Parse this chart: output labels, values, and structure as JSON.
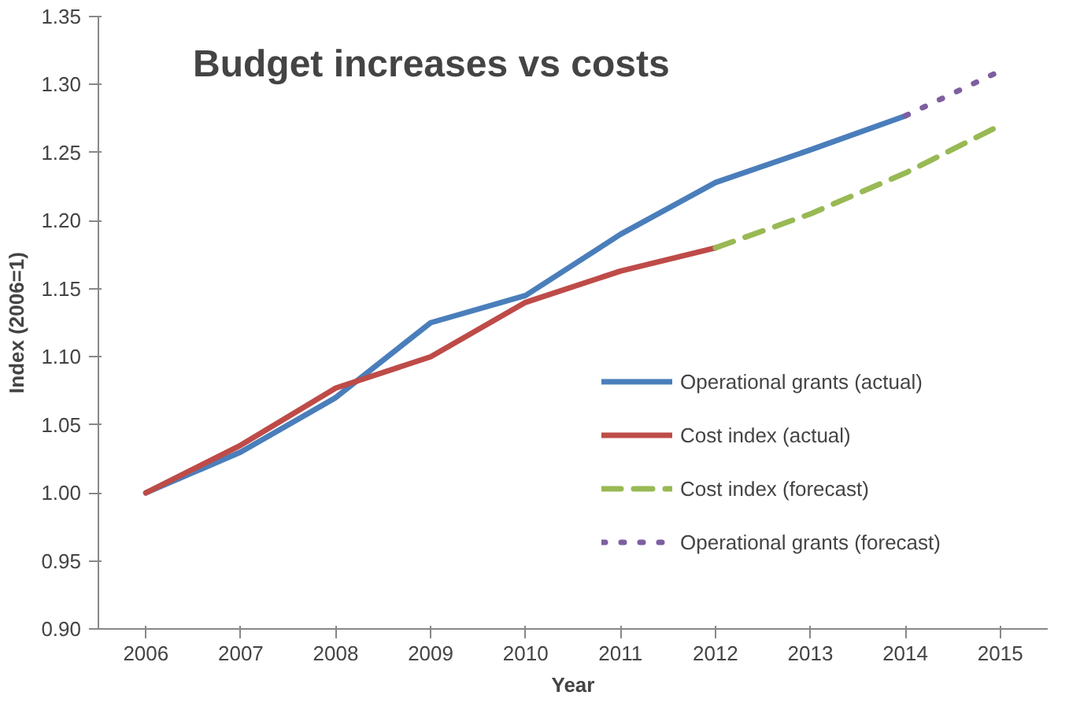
{
  "chart_data": {
    "type": "line",
    "title": "Budget increases vs costs",
    "xlabel": "Year",
    "ylabel": "Index (2006=1)",
    "categories": [
      "2006",
      "2007",
      "2008",
      "2009",
      "2010",
      "2011",
      "2012",
      "2013",
      "2014",
      "2015"
    ],
    "ylim": [
      0.9,
      1.35
    ],
    "yticks": [
      {
        "value": 0.9,
        "label": "0.90"
      },
      {
        "value": 0.95,
        "label": "0.95"
      },
      {
        "value": 1.0,
        "label": "1.00"
      },
      {
        "value": 1.05,
        "label": "1.05"
      },
      {
        "value": 1.1,
        "label": "1.10"
      },
      {
        "value": 1.15,
        "label": "1.15"
      },
      {
        "value": 1.2,
        "label": "1.20"
      },
      {
        "value": 1.25,
        "label": "1.25"
      },
      {
        "value": 1.3,
        "label": "1.30"
      },
      {
        "value": 1.35,
        "label": "1.35"
      }
    ],
    "grid": false,
    "legend": "right",
    "marker": "none",
    "series": [
      {
        "name": "Operational grants (actual)",
        "color": "#4a7ebb",
        "line_style": "solid",
        "values": [
          1.0,
          1.03,
          1.07,
          1.125,
          1.145,
          1.19,
          1.228,
          1.252,
          1.277,
          null
        ]
      },
      {
        "name": "Cost index (actual)",
        "color": "#be4b48",
        "line_style": "solid",
        "values": [
          1.0,
          1.035,
          1.077,
          1.1,
          1.14,
          1.163,
          1.18,
          null,
          null,
          null
        ]
      },
      {
        "name": "Cost index (forecast)",
        "color": "#98b954",
        "line_style": "dashed",
        "values": [
          null,
          null,
          null,
          null,
          null,
          null,
          1.18,
          1.205,
          1.235,
          1.27
        ]
      },
      {
        "name": "Operational grants (forecast)",
        "color": "#7d5fa0",
        "line_style": "dotted",
        "values": [
          null,
          null,
          null,
          null,
          null,
          null,
          null,
          null,
          1.277,
          1.31
        ]
      }
    ]
  }
}
